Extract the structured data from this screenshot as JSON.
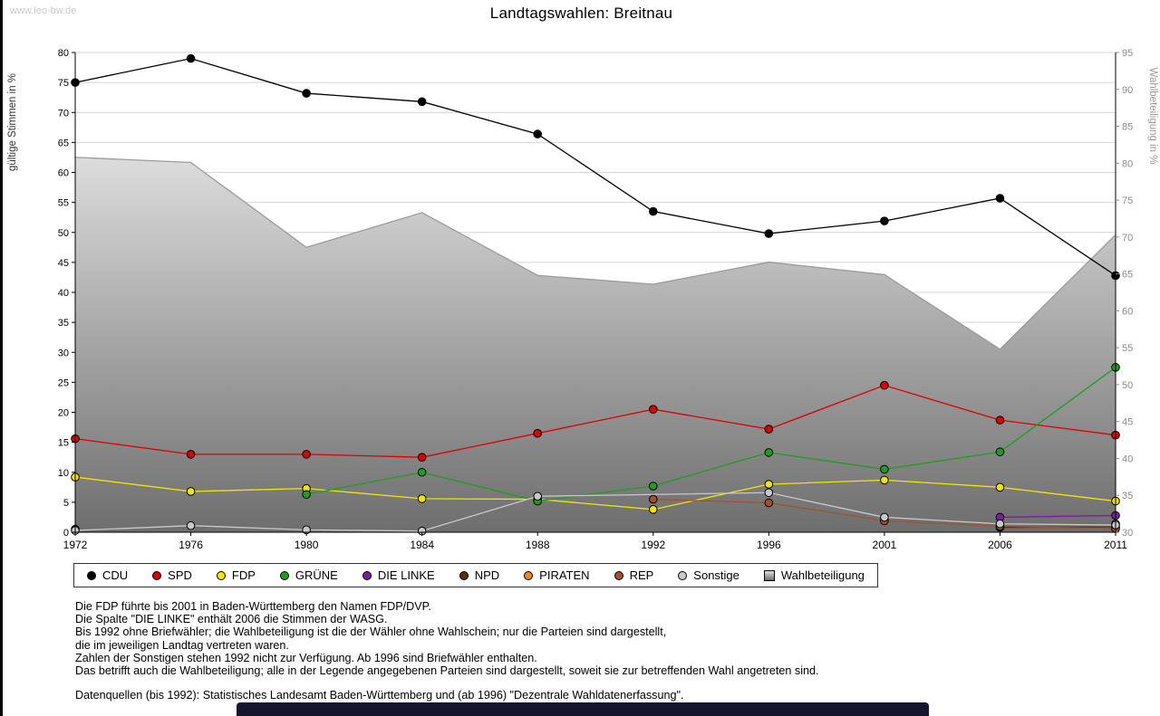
{
  "window": {
    "watermark": "www.leo-bw.de",
    "title": "Landtagswahlen: Breitnau"
  },
  "chart_data": {
    "type": "line",
    "title": "Landtagswahlen: Breitnau",
    "x_labels": [
      "1972",
      "1976",
      "1980",
      "1984",
      "1988",
      "1992",
      "1996",
      "2001",
      "2006",
      "2011"
    ],
    "left_axis": {
      "label": "gültige Stimmen in %",
      "min": 0,
      "max": 80,
      "tick_step": 5
    },
    "right_axis": {
      "label": "Wahlbeteiligung in %",
      "min": 30,
      "max": 95,
      "tick_step": 5
    },
    "grid": true,
    "legend_position": "bottom",
    "series": [
      {
        "name": "CDU",
        "type": "line",
        "axis": "left",
        "color": "#000000",
        "values": [
          75.0,
          79.0,
          73.2,
          71.8,
          66.4,
          53.5,
          49.8,
          51.9,
          55.7,
          42.8
        ]
      },
      {
        "name": "SPD",
        "type": "line",
        "axis": "left",
        "color": "#dd0000",
        "values": [
          15.6,
          13.0,
          13.0,
          12.5,
          16.5,
          20.5,
          17.2,
          24.5,
          18.7,
          16.2
        ]
      },
      {
        "name": "FDP",
        "type": "line",
        "axis": "left",
        "color": "#f2e500",
        "values": [
          9.2,
          6.8,
          7.3,
          5.6,
          5.5,
          3.8,
          8.0,
          8.7,
          7.5,
          5.2
        ]
      },
      {
        "name": "GRÜNE",
        "type": "line",
        "axis": "left",
        "color": "#1e9e1e",
        "values": [
          null,
          null,
          6.3,
          10.0,
          5.2,
          7.7,
          13.3,
          10.5,
          13.4,
          27.5
        ]
      },
      {
        "name": "DIE LINKE",
        "type": "line",
        "axis": "left",
        "color": "#7a1fa2",
        "values": [
          null,
          null,
          null,
          null,
          null,
          null,
          null,
          null,
          2.5,
          2.8
        ]
      },
      {
        "name": "NPD",
        "type": "line",
        "axis": "left",
        "color": "#54300f",
        "values": [
          0.5,
          null,
          null,
          null,
          null,
          null,
          null,
          null,
          0.8,
          0.9
        ]
      },
      {
        "name": "PIRATEN",
        "type": "line",
        "axis": "left",
        "color": "#ef8522",
        "values": [
          null,
          null,
          null,
          null,
          null,
          null,
          null,
          null,
          null,
          1.4
        ]
      },
      {
        "name": "REP",
        "type": "line",
        "axis": "left",
        "color": "#a0522d",
        "values": [
          null,
          null,
          null,
          null,
          null,
          5.5,
          4.9,
          1.9,
          1.0,
          0.6
        ]
      },
      {
        "name": "Sonstige",
        "type": "line",
        "axis": "left",
        "color": "#c9c9c9",
        "connect_gaps": true,
        "values": [
          0.3,
          1.1,
          0.4,
          0.2,
          6.0,
          null,
          6.6,
          2.5,
          1.4,
          1.2
        ]
      },
      {
        "name": "Wahlbeteiligung",
        "type": "area",
        "axis": "right",
        "color": "#9b9b9b",
        "fill_top": "#dcdcdc",
        "fill_bottom": "#6e6e6e",
        "values": [
          80.8,
          80.1,
          68.6,
          73.3,
          64.8,
          63.6,
          66.6,
          64.9,
          54.8,
          70.3
        ]
      }
    ]
  },
  "footnotes": [
    "Die FDP führte bis 2001 in Baden-Württemberg den Namen FDP/DVP.",
    "Die Spalte \"DIE LINKE\" enthält 2006 die Stimmen der WASG.",
    "Bis 1992 ohne Briefwähler; die Wahlbeteiligung ist die der Wähler ohne Wahlschein; nur die Parteien sind dargestellt,",
    "die im jeweiligen Landtag vertreten waren.",
    "Zahlen der Sonstigen stehen 1992 nicht zur Verfügung. Ab 1996 sind Briefwähler enthalten.",
    "Das betrifft auch die Wahlbeteiligung; alle in der Legende angegebenen Parteien sind dargestellt, soweit sie zur betreffenden Wahl angetreten sind.",
    "",
    "Datenquellen (bis 1992): Statistisches Landesamt Baden-Württemberg und (ab 1996) \"Dezentrale Wahldatenerfassung\"."
  ]
}
